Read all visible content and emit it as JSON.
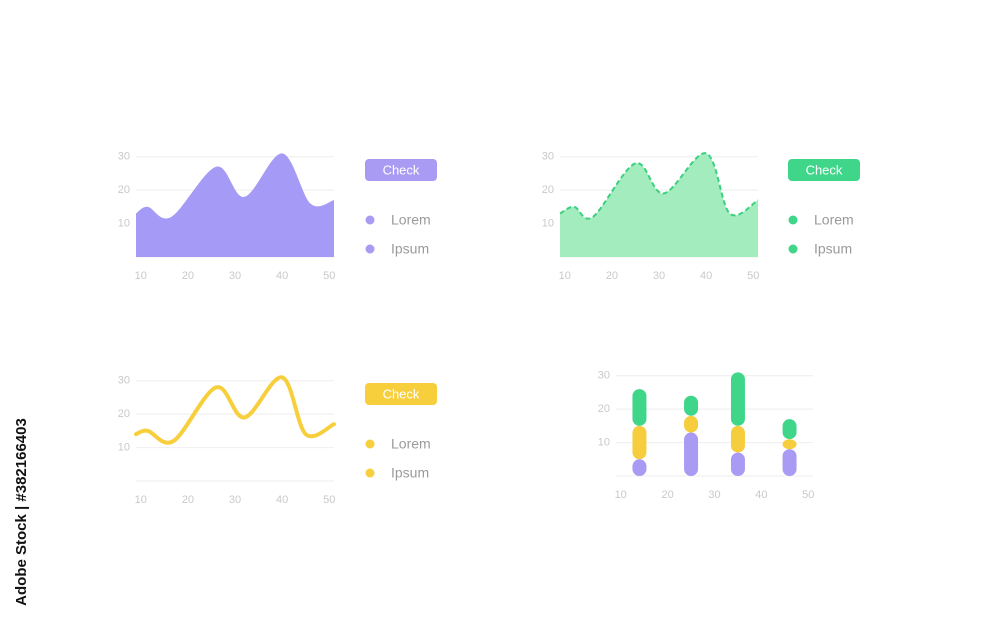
{
  "side_label": "Adobe Stock | #382166403",
  "chart_data": [
    {
      "type": "area",
      "x": [
        9,
        11.5,
        16.5,
        26,
        32,
        40,
        46,
        51
      ],
      "series": [
        {
          "color": "#a59af5",
          "values": [
            13,
            15,
            12,
            27,
            18,
            31,
            16,
            17
          ]
        }
      ],
      "xlim": [
        9,
        51
      ],
      "ylim": [
        0,
        32
      ],
      "xticks": [
        10,
        20,
        30,
        40,
        50
      ],
      "yticks": [
        10,
        20,
        30
      ],
      "grid": true,
      "button": "Check",
      "button_color": "#a99bf3",
      "legend_items": [
        "Lorem",
        "Ipsum"
      ],
      "legend_color": "#a99bf3"
    },
    {
      "type": "area",
      "x": [
        9,
        12,
        16,
        25,
        31,
        40,
        45,
        51
      ],
      "series": [
        {
          "color": "#a3ecbd",
          "values": [
            13,
            15,
            12,
            28,
            19,
            31,
            13,
            17
          ]
        }
      ],
      "line_color": "#3ad07f",
      "line_style": "dashed",
      "xlim": [
        9,
        51
      ],
      "ylim": [
        0,
        32
      ],
      "xticks": [
        10,
        20,
        30,
        40,
        50
      ],
      "yticks": [
        10,
        20,
        30
      ],
      "grid": true,
      "button": "Check",
      "button_color": "#3fd68a",
      "legend_items": [
        "Lorem",
        "Ipsum"
      ],
      "legend_color": "#3fd68a"
    },
    {
      "type": "line",
      "x": [
        9,
        11.5,
        17,
        26,
        32,
        40,
        45,
        51
      ],
      "series": [
        {
          "color": "#f7cf3d",
          "values": [
            14,
            15,
            12,
            28,
            19,
            31,
            14,
            17
          ]
        }
      ],
      "xlim": [
        9,
        51
      ],
      "ylim": [
        0,
        32
      ],
      "xticks": [
        10,
        20,
        30,
        40,
        50
      ],
      "yticks": [
        10,
        20,
        30
      ],
      "grid": true,
      "button": "Check",
      "button_color": "#f7cf3d",
      "legend_items": [
        "Lorem",
        "Ipsum"
      ],
      "legend_color": "#f7cf3d"
    },
    {
      "type": "bar",
      "stacked": true,
      "x": [
        14,
        25,
        35,
        46
      ],
      "series": [
        {
          "color": "#a99bf3",
          "values": [
            5,
            13,
            7,
            8
          ]
        },
        {
          "color": "#f6cd3c",
          "values": [
            10,
            5,
            8,
            3
          ]
        },
        {
          "color": "#3fd68a",
          "values": [
            11,
            6,
            16,
            6
          ]
        }
      ],
      "xlim": [
        9,
        51
      ],
      "ylim": [
        0,
        32
      ],
      "xticks": [
        10,
        20,
        30,
        40,
        50
      ],
      "yticks": [
        10,
        20,
        30
      ],
      "grid": true
    }
  ]
}
